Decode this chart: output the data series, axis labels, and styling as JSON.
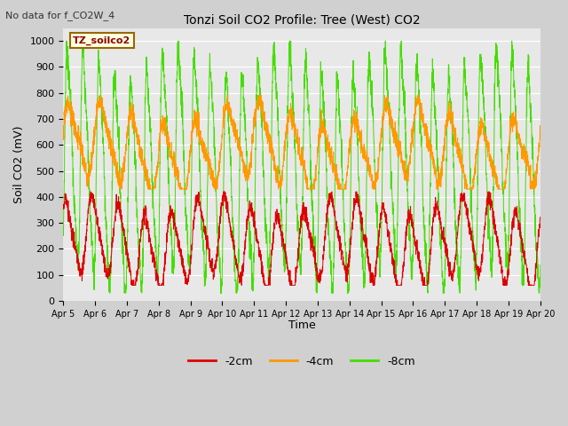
{
  "title": "Tonzi Soil CO2 Profile: Tree (West) CO2",
  "top_left_text": "No data for f_CO2W_4",
  "ylabel": "Soil CO2 (mV)",
  "xlabel": "Time",
  "ylim": [
    0,
    1050
  ],
  "xlim": [
    0,
    15
  ],
  "legend_label": "TZ_soilco2",
  "series_labels": [
    "-2cm",
    "-4cm",
    "-8cm"
  ],
  "series_colors": [
    "#dd0000",
    "#ff9900",
    "#44dd00"
  ],
  "fig_facecolor": "#d0d0d0",
  "plot_bg_color": "#e8e8e8",
  "x_tick_labels": [
    "Apr 5",
    "Apr 6",
    "Apr 7",
    "Apr 8",
    "Apr 9",
    "Apr 10",
    "Apr 11",
    "Apr 12",
    "Apr 13",
    "Apr 14",
    "Apr 15",
    "Apr 16",
    "Apr 17",
    "Apr 18",
    "Apr 19",
    "Apr 20"
  ],
  "yticks": [
    0,
    100,
    200,
    300,
    400,
    500,
    600,
    700,
    800,
    900,
    1000
  ],
  "seed": 7,
  "n_points": 3000
}
